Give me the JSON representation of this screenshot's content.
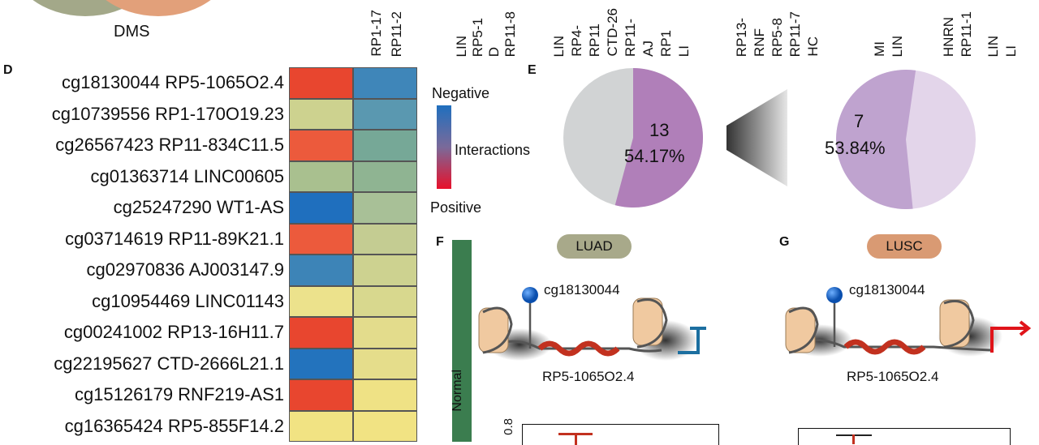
{
  "venn": {
    "label": "DMS"
  },
  "panel_d": {
    "letter": "D",
    "rows": [
      {
        "label": "cg18130044 RP5-1065O2.4",
        "c1": "#e8462f",
        "c2": "#3f86b9"
      },
      {
        "label": "cg10739556 RP1-170O19.23",
        "c1": "#cdd28f",
        "c2": "#5a98b0"
      },
      {
        "label": "cg26567423 RP11-834C11.5",
        "c1": "#ec5a3c",
        "c2": "#76a897"
      },
      {
        "label": "cg01363714 LINC00605",
        "c1": "#a9c08f",
        "c2": "#8fb492"
      },
      {
        "label": "cg25247290 WT1-AS",
        "c1": "#1f6fbe",
        "c2": "#a8c097"
      },
      {
        "label": "cg03714619 RP11-89K21.1",
        "c1": "#ec5a3c",
        "c2": "#c4cc92"
      },
      {
        "label": "cg02970836 AJ003147.9",
        "c1": "#3d84b7",
        "c2": "#cdd290"
      },
      {
        "label": "cg10954469 LINC01143",
        "c1": "#ece28c",
        "c2": "#d8d88e"
      },
      {
        "label": "cg00241002 RP13-16H11.7",
        "c1": "#e8462f",
        "c2": "#e3dc8c"
      },
      {
        "label": "cg22195627 CTD-2666L21.1",
        "c1": "#2373bd",
        "c2": "#e5dd8b"
      },
      {
        "label": "cg15126179 RNF219-AS1",
        "c1": "#e8462f",
        "c2": "#efe285"
      },
      {
        "label": "cg16365424 RP5-855F14.2",
        "c1": "#f1e383",
        "c2": "#f1e383"
      }
    ],
    "top_labels": [
      {
        "text": "RP1-17"
      },
      {
        "text": "RP11-2"
      },
      {
        "text": "LIN"
      },
      {
        "text": "RP5-1"
      },
      {
        "text": "D"
      },
      {
        "text": "RP11-8"
      },
      {
        "text": "LIN"
      },
      {
        "text": "RP4-"
      },
      {
        "text": "RP11"
      },
      {
        "text": "CTD-26"
      },
      {
        "text": "RP11-"
      },
      {
        "text": "AJ"
      },
      {
        "text": "RP1"
      },
      {
        "text": "LI"
      },
      {
        "text": "RP13-"
      },
      {
        "text": "RNF"
      },
      {
        "text": "RP5-8"
      },
      {
        "text": "RP11-7"
      },
      {
        "text": "HC"
      },
      {
        "text": "MI"
      },
      {
        "text": "LIN"
      },
      {
        "text": "HNRN"
      },
      {
        "text": "RP11-1"
      },
      {
        "text": "LIN"
      },
      {
        "text": "LI"
      }
    ]
  },
  "legend": {
    "negative": "Negative",
    "interactions": "Interactions",
    "positive": "Positive",
    "colors": {
      "top": "#1f6fbe",
      "mid": "#7a6a9a",
      "bottom": "#e8102a"
    }
  },
  "panel_e": {
    "letter": "E",
    "pie1": {
      "count": "13",
      "percent": "54.17%",
      "fraction": 0.5417,
      "color_main": "#b07fb9",
      "color_rest": "#d1d3d4"
    },
    "pie2": {
      "count": "7",
      "percent": "53.84%",
      "fraction": 0.5384,
      "color_main": "#bfa3cf",
      "color_rest": "#e3d5ea"
    }
  },
  "panel_f": {
    "letter": "F",
    "pill": "LUAD",
    "pill_color": "#a8a98a",
    "probe": "cg18130044",
    "gene": "RP5-1065O2.4",
    "bar_label": "Normal",
    "bar_color": "#3b7d4f",
    "axis_tick": "0.8"
  },
  "panel_g": {
    "letter": "G",
    "pill": "LUSC",
    "pill_color": "#d99a73",
    "probe": "cg18130044",
    "gene": "RP5-1065O2.4"
  }
}
